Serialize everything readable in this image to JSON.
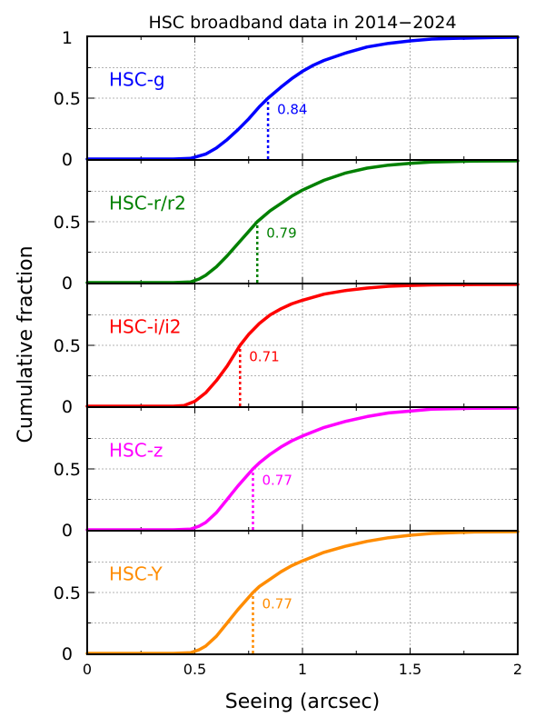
{
  "chart_data": {
    "type": "line",
    "title": "HSC broadband data in 2014−2024",
    "xlabel": "Seeing (arcsec)",
    "ylabel": "Cumulative fraction",
    "xlim": [
      0,
      2
    ],
    "ylim": [
      0,
      1
    ],
    "x_ticks": [
      "0",
      "0.5",
      "1",
      "1.5",
      "2"
    ],
    "y_ticks": [
      "0",
      "0.5",
      "1"
    ],
    "grid": true,
    "panels": [
      {
        "label": "HSC-g",
        "color": "#0000ff",
        "median": 0.84,
        "median_label": "0.84",
        "x": [
          0.0,
          0.4,
          0.48,
          0.55,
          0.6,
          0.65,
          0.7,
          0.75,
          0.8,
          0.84,
          0.9,
          0.95,
          1.0,
          1.05,
          1.1,
          1.2,
          1.3,
          1.4,
          1.5,
          1.6,
          1.7,
          1.8,
          1.9,
          2.0
        ],
        "y": [
          0.0,
          0.0,
          0.005,
          0.04,
          0.09,
          0.16,
          0.24,
          0.33,
          0.43,
          0.5,
          0.59,
          0.66,
          0.72,
          0.77,
          0.81,
          0.87,
          0.92,
          0.95,
          0.97,
          0.985,
          0.99,
          0.995,
          0.998,
          1.0
        ]
      },
      {
        "label": "HSC-r/r2",
        "color": "#008000",
        "median": 0.79,
        "median_label": "0.79",
        "x": [
          0.0,
          0.4,
          0.48,
          0.52,
          0.55,
          0.6,
          0.65,
          0.7,
          0.75,
          0.79,
          0.85,
          0.9,
          0.95,
          1.0,
          1.1,
          1.2,
          1.3,
          1.4,
          1.5,
          1.6,
          1.7,
          1.8,
          2.0
        ],
        "y": [
          0.0,
          0.0,
          0.005,
          0.03,
          0.06,
          0.13,
          0.22,
          0.32,
          0.42,
          0.5,
          0.59,
          0.65,
          0.71,
          0.76,
          0.84,
          0.9,
          0.94,
          0.965,
          0.98,
          0.99,
          0.995,
          0.998,
          1.0
        ]
      },
      {
        "label": "HSC-i/i2",
        "color": "#ff0000",
        "median": 0.71,
        "median_label": "0.71",
        "x": [
          0.0,
          0.4,
          0.45,
          0.5,
          0.55,
          0.6,
          0.65,
          0.71,
          0.75,
          0.8,
          0.85,
          0.9,
          0.95,
          1.0,
          1.1,
          1.2,
          1.3,
          1.4,
          1.5,
          1.6,
          1.7,
          1.8,
          2.0
        ],
        "y": [
          0.0,
          0.0,
          0.005,
          0.04,
          0.11,
          0.21,
          0.33,
          0.5,
          0.59,
          0.68,
          0.75,
          0.8,
          0.84,
          0.87,
          0.92,
          0.95,
          0.97,
          0.985,
          0.992,
          0.996,
          0.998,
          0.999,
          1.0
        ]
      },
      {
        "label": "HSC-z",
        "color": "#ff00ff",
        "median": 0.77,
        "median_label": "0.77",
        "x": [
          0.0,
          0.4,
          0.48,
          0.52,
          0.55,
          0.6,
          0.65,
          0.7,
          0.77,
          0.8,
          0.85,
          0.9,
          0.95,
          1.0,
          1.1,
          1.2,
          1.3,
          1.4,
          1.5,
          1.6,
          1.7,
          1.8,
          2.0
        ],
        "y": [
          0.0,
          0.0,
          0.005,
          0.03,
          0.06,
          0.14,
          0.25,
          0.36,
          0.5,
          0.55,
          0.62,
          0.68,
          0.73,
          0.77,
          0.84,
          0.89,
          0.93,
          0.96,
          0.975,
          0.99,
          0.995,
          0.998,
          1.0
        ]
      },
      {
        "label": "HSC-Y",
        "color": "#ff8c00",
        "median": 0.77,
        "median_label": "0.77",
        "x": [
          0.0,
          0.4,
          0.48,
          0.52,
          0.55,
          0.6,
          0.65,
          0.7,
          0.77,
          0.8,
          0.85,
          0.9,
          0.95,
          1.0,
          1.1,
          1.2,
          1.3,
          1.4,
          1.5,
          1.6,
          1.7,
          1.8,
          2.0
        ],
        "y": [
          0.0,
          0.0,
          0.005,
          0.03,
          0.06,
          0.14,
          0.25,
          0.36,
          0.5,
          0.55,
          0.61,
          0.67,
          0.72,
          0.76,
          0.83,
          0.88,
          0.92,
          0.95,
          0.97,
          0.985,
          0.992,
          0.997,
          1.0
        ]
      }
    ]
  }
}
